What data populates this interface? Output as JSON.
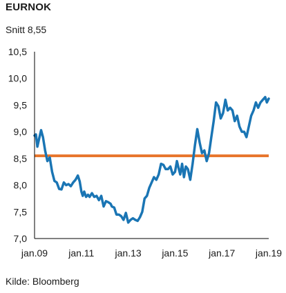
{
  "title": "EURNOK",
  "subtitle": "Snitt 8,55",
  "source": "Kilde: Bloomberg",
  "colors": {
    "series": "#1a75b4",
    "average": "#e8772e",
    "axis": "#000000"
  },
  "chart_data": {
    "type": "line",
    "title": "EURNOK",
    "subtitle": "Snitt 8,55",
    "xlabel": "",
    "ylabel": "",
    "ylim": [
      7.0,
      10.5
    ],
    "xlim": [
      2009.0,
      2019.0
    ],
    "grid": false,
    "y_ticks": [
      {
        "value": 10.5,
        "label": "10,5"
      },
      {
        "value": 10.0,
        "label": "10,0"
      },
      {
        "value": 9.5,
        "label": "9,5"
      },
      {
        "value": 9.0,
        "label": "9,0"
      },
      {
        "value": 8.5,
        "label": "8,5"
      },
      {
        "value": 8.0,
        "label": "8,0"
      },
      {
        "value": 7.5,
        "label": "7,5"
      },
      {
        "value": 7.0,
        "label": "7,0"
      }
    ],
    "x_ticks": [
      {
        "value": 2009.0,
        "label": "jan.09"
      },
      {
        "value": 2011.0,
        "label": "jan.11"
      },
      {
        "value": 2013.0,
        "label": "jan.13"
      },
      {
        "value": 2015.0,
        "label": "jan.15"
      },
      {
        "value": 2017.0,
        "label": "jan.17"
      },
      {
        "value": 2019.0,
        "label": "jan.19"
      }
    ],
    "average": {
      "name": "Snitt",
      "value": 8.55
    },
    "series": [
      {
        "name": "EURNOK",
        "x": [
          2009.0,
          2009.06,
          2009.12,
          2009.2,
          2009.28,
          2009.36,
          2009.45,
          2009.55,
          2009.65,
          2009.75,
          2009.85,
          2009.95,
          2010.05,
          2010.15,
          2010.25,
          2010.35,
          2010.45,
          2010.55,
          2010.65,
          2010.75,
          2010.85,
          2010.93,
          2011.0,
          2011.06,
          2011.12,
          2011.2,
          2011.28,
          2011.35,
          2011.45,
          2011.55,
          2011.65,
          2011.75,
          2011.85,
          2011.95,
          2012.05,
          2012.15,
          2012.25,
          2012.3,
          2012.4,
          2012.5,
          2012.6,
          2012.7,
          2012.8,
          2012.9,
          2013.0,
          2013.1,
          2013.2,
          2013.3,
          2013.4,
          2013.5,
          2013.6,
          2013.7,
          2013.8,
          2013.9,
          2014.0,
          2014.1,
          2014.2,
          2014.3,
          2014.4,
          2014.5,
          2014.6,
          2014.7,
          2014.8,
          2014.9,
          2015.0,
          2015.08,
          2015.15,
          2015.22,
          2015.3,
          2015.38,
          2015.46,
          2015.55,
          2015.65,
          2015.75,
          2015.85,
          2015.95,
          2016.05,
          2016.15,
          2016.25,
          2016.35,
          2016.45,
          2016.55,
          2016.65,
          2016.75,
          2016.85,
          2016.95,
          2017.05,
          2017.15,
          2017.25,
          2017.35,
          2017.45,
          2017.55,
          2017.65,
          2017.75,
          2017.85,
          2017.95,
          2018.05,
          2018.15,
          2018.25,
          2018.35,
          2018.45,
          2018.55,
          2018.65,
          2018.75,
          2018.85,
          2018.92,
          2019.0
        ],
        "values": [
          8.93,
          8.95,
          8.72,
          8.88,
          9.03,
          8.9,
          8.65,
          8.45,
          8.52,
          8.25,
          8.08,
          8.05,
          7.93,
          7.92,
          8.05,
          8.0,
          8.02,
          7.98,
          8.05,
          8.1,
          8.18,
          8.07,
          7.88,
          7.8,
          7.88,
          7.78,
          7.82,
          7.78,
          7.85,
          7.78,
          7.8,
          7.72,
          7.8,
          7.6,
          7.7,
          7.68,
          7.65,
          7.6,
          7.58,
          7.45,
          7.45,
          7.42,
          7.35,
          7.48,
          7.3,
          7.35,
          7.38,
          7.35,
          7.33,
          7.4,
          7.5,
          7.75,
          7.8,
          7.95,
          8.05,
          8.15,
          8.1,
          8.2,
          8.4,
          8.38,
          8.3,
          8.3,
          8.35,
          8.2,
          8.25,
          8.45,
          8.32,
          8.2,
          8.4,
          8.15,
          8.35,
          8.3,
          8.1,
          8.4,
          8.75,
          9.05,
          8.8,
          8.6,
          8.65,
          8.45,
          8.6,
          8.9,
          9.2,
          9.55,
          9.48,
          9.25,
          9.35,
          9.6,
          9.4,
          9.45,
          9.4,
          9.2,
          9.3,
          9.1,
          9.0,
          9.0,
          8.9,
          9.1,
          9.3,
          9.4,
          9.55,
          9.45,
          9.55,
          9.6,
          9.65,
          9.55,
          9.62
        ]
      }
    ]
  }
}
